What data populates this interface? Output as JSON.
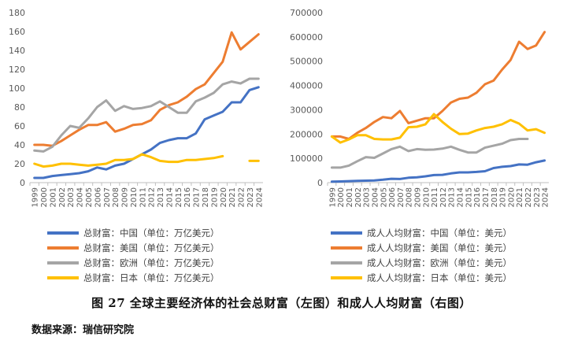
{
  "caption": {
    "figure_label": "图 27",
    "text": "全球主要经济体的社会总财富（左图）和成人人均财富（右图）"
  },
  "source": "数据来源：瑞信研究院",
  "colors": {
    "china": "#4472C4",
    "usa": "#ED7D31",
    "europe": "#A5A5A5",
    "japan": "#FFC000"
  },
  "chart_data": [
    {
      "type": "line",
      "title": "",
      "xlabel": "",
      "ylabel": "",
      "ylim": [
        0,
        180
      ],
      "yticks": [
        0,
        20,
        40,
        60,
        80,
        100,
        120,
        140,
        160,
        180
      ],
      "grid": false,
      "legend_position": "bottom",
      "categories": [
        "1999",
        "2000",
        "2001",
        "2002",
        "2003",
        "2004",
        "2005",
        "2006",
        "2007",
        "2008",
        "2009",
        "2010",
        "2011",
        "2012",
        "2013",
        "2014",
        "2015",
        "2016",
        "2017",
        "2018",
        "2019",
        "2020",
        "2021",
        "2022",
        "2023",
        "2024"
      ],
      "series": [
        {
          "name": "总财富：中国（单位：万亿美元）",
          "color": "#4472C4",
          "values": [
            5,
            5,
            7,
            8,
            9,
            10,
            12,
            16,
            14,
            18,
            20,
            25,
            30,
            35,
            42,
            45,
            47,
            47,
            52,
            67,
            71,
            75,
            85,
            85,
            98,
            101
          ]
        },
        {
          "name": "总财富：美国（单位：万亿美元）",
          "color": "#ED7D31",
          "values": [
            40,
            40,
            39,
            44,
            50,
            56,
            61,
            61,
            64,
            54,
            57,
            61,
            62,
            66,
            77,
            82,
            85,
            91,
            99,
            104,
            116,
            128,
            159,
            141,
            149,
            157
          ]
        },
        {
          "name": "总财富：欧洲（单位：万亿美元）",
          "color": "#A5A5A5",
          "values": [
            34,
            33,
            38,
            50,
            60,
            58,
            68,
            80,
            87,
            76,
            81,
            78,
            79,
            81,
            86,
            80,
            74,
            74,
            86,
            90,
            95,
            104,
            107,
            105,
            110,
            110
          ]
        },
        {
          "name": "总财富：日本（单位：万亿美元）",
          "color": "#FFC000",
          "values": [
            20,
            17,
            18,
            20,
            20,
            19,
            18,
            19,
            20,
            24,
            24,
            25,
            30,
            27,
            23,
            22,
            22,
            24,
            24,
            25,
            26,
            28,
            null,
            null,
            23,
            23
          ]
        }
      ]
    },
    {
      "type": "line",
      "title": "",
      "xlabel": "",
      "ylabel": "",
      "ylim": [
        0,
        700000
      ],
      "yticks": [
        0,
        100000,
        200000,
        300000,
        400000,
        500000,
        600000,
        700000
      ],
      "grid": false,
      "legend_position": "bottom",
      "categories": [
        "1999",
        "2000",
        "2001",
        "2002",
        "2003",
        "2004",
        "2005",
        "2006",
        "2007",
        "2008",
        "2009",
        "2010",
        "2011",
        "2012",
        "2013",
        "2014",
        "2015",
        "2016",
        "2017",
        "2018",
        "2019",
        "2020",
        "2021",
        "2022",
        "2023",
        "2024"
      ],
      "series": [
        {
          "name": "成人人均财富：中国（单位：美元）",
          "color": "#4472C4",
          "values": [
            4000,
            5000,
            6000,
            7000,
            8000,
            9000,
            12000,
            16000,
            15000,
            20000,
            22000,
            26000,
            31000,
            32000,
            38000,
            42000,
            42000,
            44000,
            47000,
            60000,
            65000,
            68000,
            75000,
            74000,
            84000,
            91000
          ]
        },
        {
          "name": "成人人均财富：美国（单位：美元）",
          "color": "#ED7D31",
          "values": [
            190000,
            190000,
            180000,
            205000,
            225000,
            250000,
            270000,
            265000,
            295000,
            245000,
            255000,
            265000,
            265000,
            295000,
            330000,
            345000,
            350000,
            370000,
            405000,
            420000,
            465000,
            505000,
            580000,
            550000,
            565000,
            620000
          ]
        },
        {
          "name": "成人人均财富：欧洲（单位：美元）",
          "color": "#A5A5A5",
          "values": [
            62000,
            62000,
            70000,
            88000,
            105000,
            102000,
            120000,
            138000,
            148000,
            130000,
            138000,
            135000,
            136000,
            140000,
            148000,
            135000,
            124000,
            124000,
            144000,
            152000,
            160000,
            175000,
            180000,
            180000,
            null,
            null
          ]
        },
        {
          "name": "成人人均财富：日本（单位：美元）",
          "color": "#FFC000",
          "values": [
            190000,
            165000,
            178000,
            195000,
            195000,
            180000,
            178000,
            178000,
            185000,
            228000,
            230000,
            240000,
            282000,
            250000,
            222000,
            200000,
            202000,
            215000,
            225000,
            230000,
            240000,
            258000,
            243000,
            215000,
            220000,
            205000
          ]
        }
      ]
    }
  ]
}
